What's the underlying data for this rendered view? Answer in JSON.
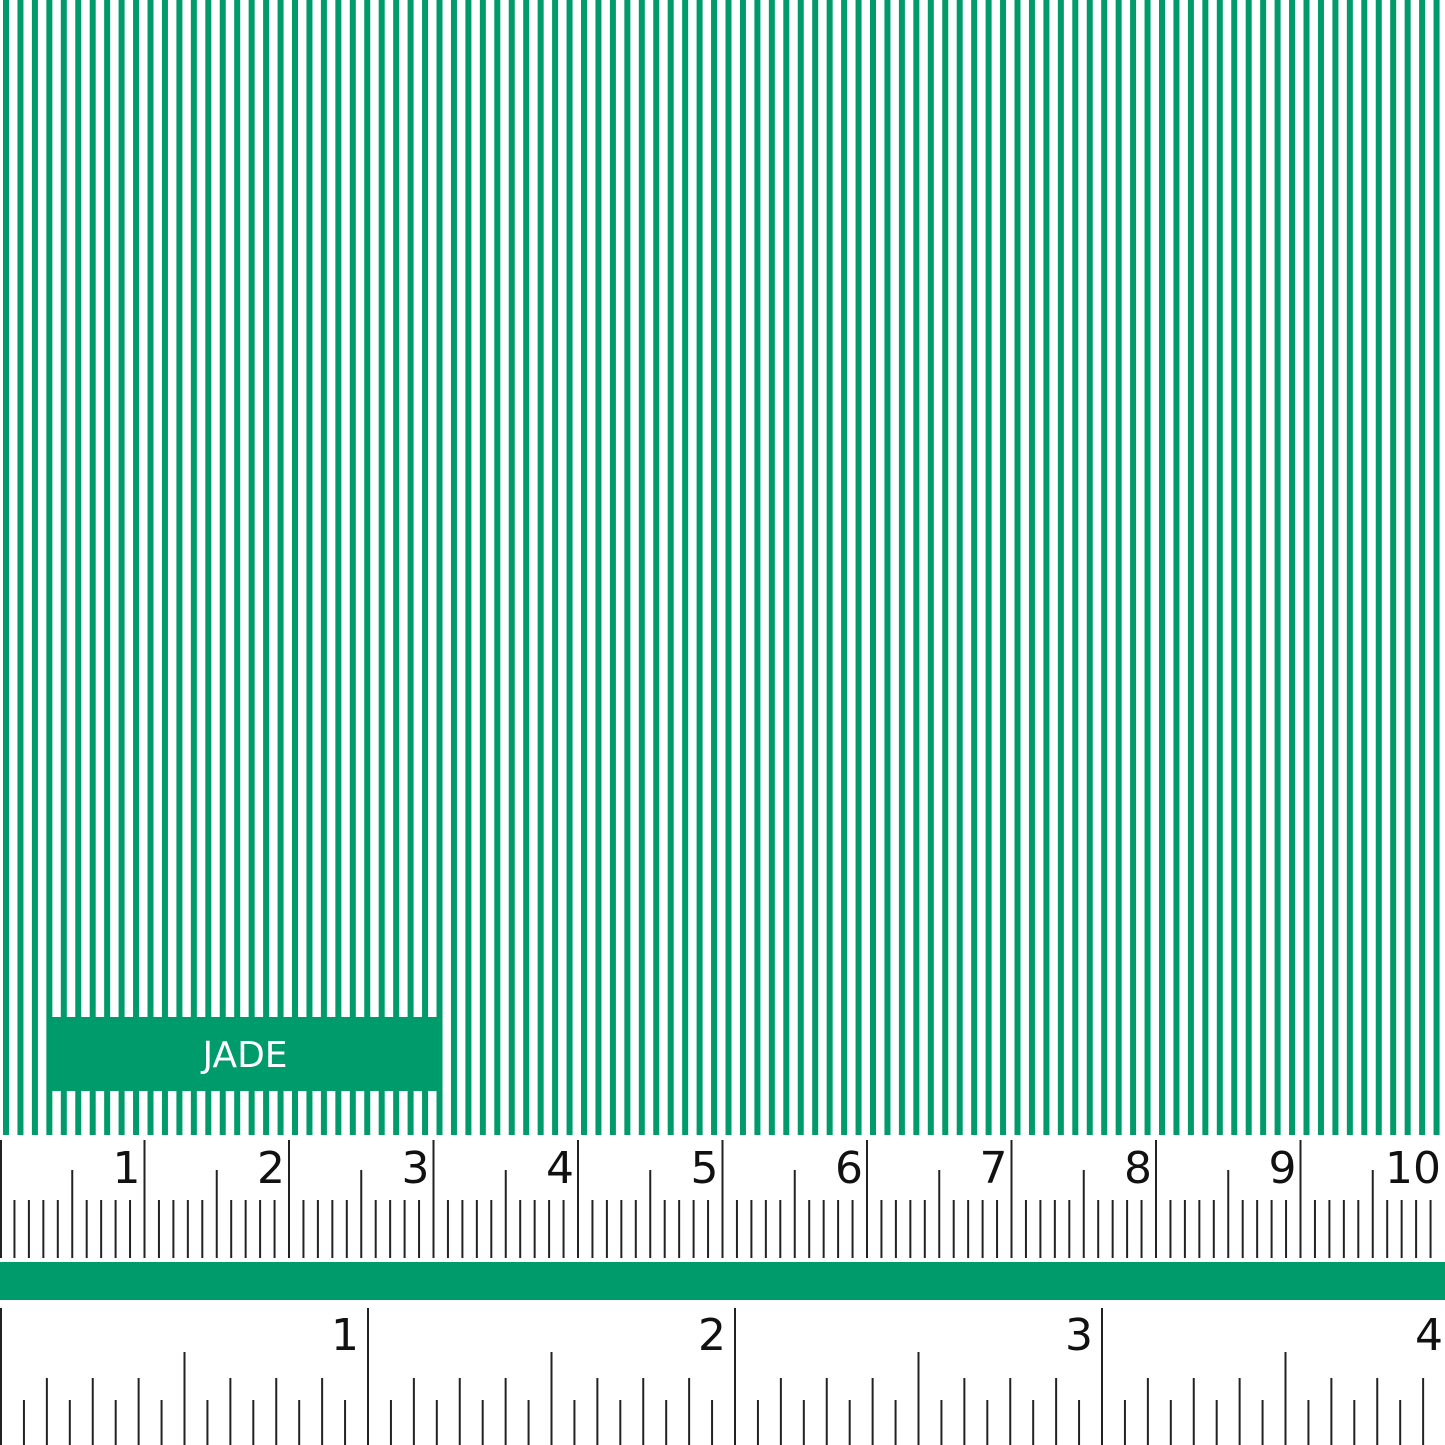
{
  "swatch": {
    "label": "JADE",
    "color": "#009b6a"
  },
  "cm_ruler": {
    "labels": [
      1,
      2,
      3,
      4,
      5,
      6,
      7,
      8,
      9,
      10
    ]
  },
  "inch_ruler": {
    "labels": [
      1,
      2,
      3,
      4
    ]
  }
}
